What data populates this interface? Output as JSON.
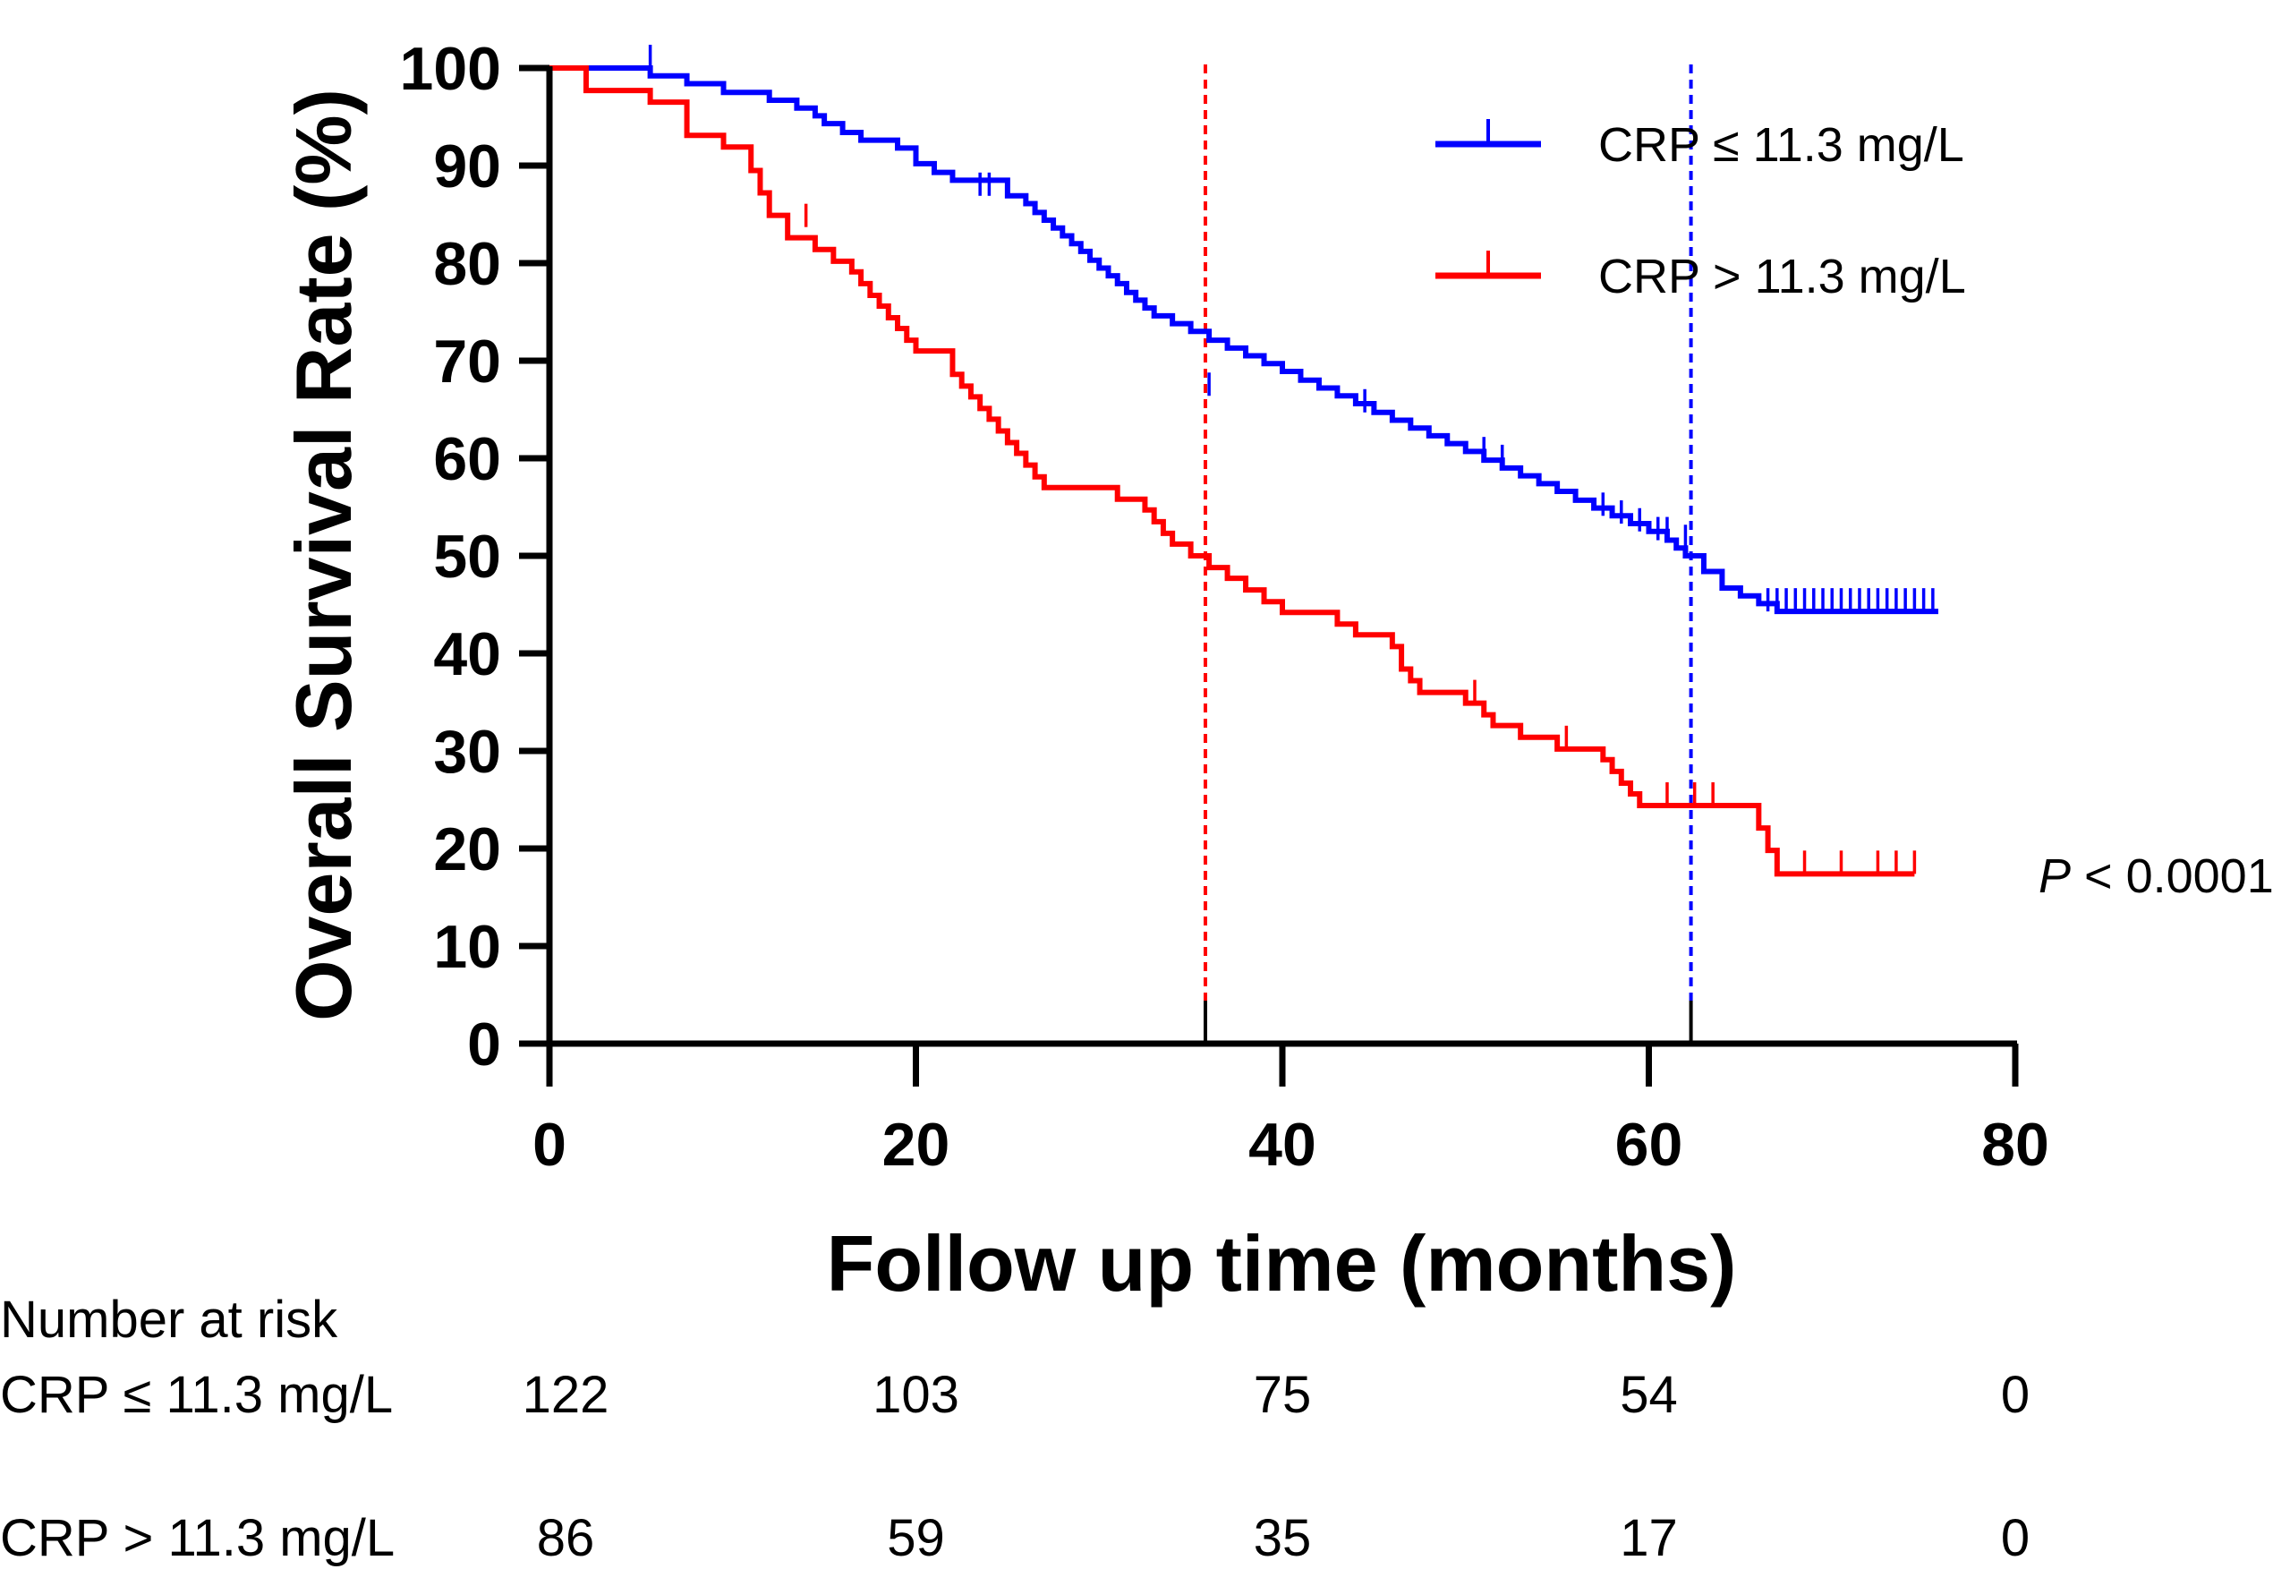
{
  "chart_data": {
    "type": "line",
    "subtype": "kaplan-meier",
    "title": "",
    "xlabel": "Follow up time (months)",
    "ylabel": "Overall Survival Rate (%)",
    "xlim": [
      0,
      80
    ],
    "ylim": [
      0,
      100
    ],
    "x_ticks": [
      0,
      20,
      40,
      60,
      80
    ],
    "x_tick_labels": [
      "0",
      "20",
      "40",
      "60",
      "80"
    ],
    "y_ticks": [
      0,
      10,
      20,
      30,
      40,
      50,
      60,
      70,
      80,
      90,
      100
    ],
    "y_tick_labels": [
      "0",
      "10",
      "20",
      "30",
      "40",
      "50",
      "60",
      "70",
      "80",
      "90",
      "100"
    ],
    "grid": false,
    "legend_position": "top-right",
    "p_value": {
      "label": "P",
      "text": " < 0.0001"
    },
    "median_lines": [
      {
        "series": "CRP > 11.3 mg/L",
        "x": 35.8,
        "color": "#ff0000"
      },
      {
        "series": "CRP ≤ 11.3 mg/L",
        "x": 62.3,
        "color": "#0000ff"
      }
    ],
    "series": [
      {
        "name": "CRP ≤ 11.3 mg/L",
        "color": "#0000ff",
        "steps": [
          [
            0,
            100
          ],
          [
            5.5,
            99.2
          ],
          [
            7.5,
            98.4
          ],
          [
            9.5,
            97.5
          ],
          [
            12,
            96.7
          ],
          [
            13.5,
            95.9
          ],
          [
            14.5,
            95.1
          ],
          [
            15,
            94.3
          ],
          [
            16,
            93.4
          ],
          [
            17,
            92.6
          ],
          [
            19,
            91.8
          ],
          [
            20,
            90.2
          ],
          [
            21,
            89.3
          ],
          [
            22,
            88.5
          ],
          [
            25,
            86.9
          ],
          [
            26,
            86.1
          ],
          [
            26.5,
            85.2
          ],
          [
            27,
            84.4
          ],
          [
            27.5,
            83.6
          ],
          [
            28,
            82.8
          ],
          [
            28.5,
            82
          ],
          [
            29,
            81.2
          ],
          [
            29.5,
            80.3
          ],
          [
            30,
            79.5
          ],
          [
            30.5,
            78.7
          ],
          [
            31,
            77.9
          ],
          [
            31.5,
            77
          ],
          [
            32,
            76.2
          ],
          [
            32.5,
            75.4
          ],
          [
            33,
            74.6
          ],
          [
            34,
            73.8
          ],
          [
            35,
            73
          ],
          [
            36,
            72.1
          ],
          [
            37,
            71.3
          ],
          [
            38,
            70.5
          ],
          [
            39,
            69.7
          ],
          [
            40,
            68.9
          ],
          [
            41,
            68
          ],
          [
            42,
            67.2
          ],
          [
            43,
            66.4
          ],
          [
            44,
            65.6
          ],
          [
            45,
            64.7
          ],
          [
            46,
            63.9
          ],
          [
            47,
            63.1
          ],
          [
            48,
            62.3
          ],
          [
            49,
            61.5
          ],
          [
            50,
            60.7
          ],
          [
            51,
            59.8
          ],
          [
            52,
            59
          ],
          [
            53,
            58.2
          ],
          [
            54,
            57.4
          ],
          [
            55,
            56.6
          ],
          [
            56,
            55.7
          ],
          [
            57,
            54.9
          ],
          [
            58,
            54.1
          ],
          [
            59,
            53.3
          ],
          [
            60,
            52.5
          ],
          [
            61,
            51.6
          ],
          [
            61.5,
            50.8
          ],
          [
            62,
            50
          ],
          [
            63,
            48.4
          ],
          [
            64,
            46.7
          ],
          [
            65,
            45.9
          ],
          [
            66,
            45.1
          ],
          [
            67,
            44.3
          ],
          [
            75.8,
            44.3
          ]
        ],
        "censors": [
          [
            5.5,
            100
          ],
          [
            23.5,
            86.9
          ],
          [
            24,
            86.9
          ],
          [
            36,
            66.4
          ],
          [
            44.5,
            64.7
          ],
          [
            51,
            59.8
          ],
          [
            52,
            59
          ],
          [
            57.5,
            54.1
          ],
          [
            58.5,
            53.3
          ],
          [
            59.5,
            52.5
          ],
          [
            60.5,
            51.6
          ],
          [
            61,
            51.6
          ],
          [
            62,
            50.8
          ],
          [
            66.5,
            44.3
          ],
          [
            67,
            44.3
          ],
          [
            67.5,
            44.3
          ],
          [
            68,
            44.3
          ],
          [
            68.5,
            44.3
          ],
          [
            69,
            44.3
          ],
          [
            69.5,
            44.3
          ],
          [
            70,
            44.3
          ],
          [
            70.5,
            44.3
          ],
          [
            71,
            44.3
          ],
          [
            71.5,
            44.3
          ],
          [
            72,
            44.3
          ],
          [
            72.5,
            44.3
          ],
          [
            73,
            44.3
          ],
          [
            73.5,
            44.3
          ],
          [
            74,
            44.3
          ],
          [
            74.5,
            44.3
          ],
          [
            75,
            44.3
          ],
          [
            75.5,
            44.3
          ]
        ]
      },
      {
        "name": "CRP > 11.3 mg/L",
        "color": "#ff0000",
        "steps": [
          [
            0,
            100
          ],
          [
            2,
            97.7
          ],
          [
            5.5,
            96.5
          ],
          [
            7.5,
            93.1
          ],
          [
            9.5,
            91.9
          ],
          [
            11,
            89.5
          ],
          [
            11.5,
            87.2
          ],
          [
            12,
            84.9
          ],
          [
            13,
            82.6
          ],
          [
            14.5,
            81.4
          ],
          [
            15.5,
            80.2
          ],
          [
            16.5,
            79.1
          ],
          [
            17,
            77.9
          ],
          [
            17.5,
            76.7
          ],
          [
            18,
            75.6
          ],
          [
            18.5,
            74.4
          ],
          [
            19,
            73.3
          ],
          [
            19.5,
            72.1
          ],
          [
            20,
            71
          ],
          [
            22,
            68.6
          ],
          [
            22.5,
            67.4
          ],
          [
            23,
            66.3
          ],
          [
            23.5,
            65.1
          ],
          [
            24,
            64
          ],
          [
            24.5,
            62.8
          ],
          [
            25,
            61.6
          ],
          [
            25.5,
            60.5
          ],
          [
            26,
            59.3
          ],
          [
            26.5,
            58.1
          ],
          [
            27,
            57
          ],
          [
            31,
            55.8
          ],
          [
            32.5,
            54.7
          ],
          [
            33,
            53.5
          ],
          [
            33.5,
            52.3
          ],
          [
            34,
            51.2
          ],
          [
            35,
            50
          ],
          [
            36,
            48.8
          ],
          [
            37,
            47.7
          ],
          [
            38,
            46.5
          ],
          [
            39,
            45.3
          ],
          [
            40,
            44.2
          ],
          [
            43,
            43
          ],
          [
            44,
            41.9
          ],
          [
            46,
            40.7
          ],
          [
            46.5,
            38.4
          ],
          [
            47,
            37.2
          ],
          [
            47.5,
            36
          ],
          [
            50,
            34.9
          ],
          [
            51,
            33.7
          ],
          [
            51.5,
            32.6
          ],
          [
            53,
            31.4
          ],
          [
            55,
            30.2
          ],
          [
            57.5,
            29.1
          ],
          [
            58,
            27.9
          ],
          [
            58.5,
            26.7
          ],
          [
            59,
            25.6
          ],
          [
            59.5,
            24.4
          ],
          [
            66,
            22.1
          ],
          [
            66.5,
            19.8
          ],
          [
            67,
            17.4
          ],
          [
            74.5,
            17.4
          ]
        ],
        "censors": [
          [
            14,
            83.7
          ],
          [
            50.5,
            34.9
          ],
          [
            55.5,
            30.2
          ],
          [
            61,
            24.4
          ],
          [
            62.5,
            24.4
          ],
          [
            63.5,
            24.4
          ],
          [
            68.5,
            17.4
          ],
          [
            70.5,
            17.4
          ],
          [
            72.5,
            17.4
          ],
          [
            73.5,
            17.4
          ],
          [
            74.5,
            17.4
          ]
        ]
      }
    ]
  },
  "legend": {
    "items": [
      {
        "label": "CRP ≤ 11.3 mg/L",
        "color": "#0000ff"
      },
      {
        "label": "CRP > 11.3 mg/L",
        "color": "#ff0000"
      }
    ]
  },
  "risk_table": {
    "title": "Number at risk",
    "times": [
      0,
      20,
      40,
      60,
      80
    ],
    "rows": [
      {
        "label": "CRP ≤ 11.3 mg/L",
        "values": [
          "122",
          "103",
          "75",
          "54",
          "0"
        ]
      },
      {
        "label": "CRP > 11.3 mg/L",
        "values": [
          "86",
          "59",
          "35",
          "17",
          "0"
        ]
      }
    ]
  }
}
